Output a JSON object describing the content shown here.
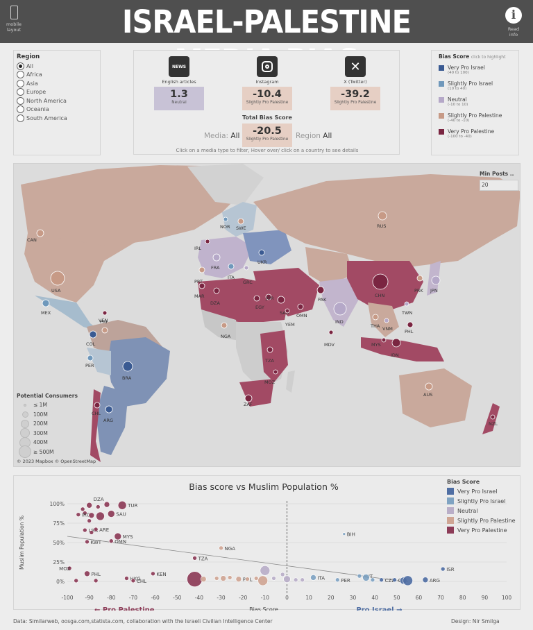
{
  "header": {
    "title": "ISRAEL-PALESTINE MEDIA BIAS",
    "mobile_label_1": "mobile",
    "mobile_label_2": "layout",
    "info_label_1": "Read",
    "info_label_2": "info"
  },
  "region": {
    "title": "Region",
    "selected": "All",
    "options": [
      "All",
      "Africa",
      "Asia",
      "Europe",
      "North America",
      "Oceania",
      "South America"
    ]
  },
  "media": {
    "items": [
      {
        "icon": "news-icon",
        "icon_text": "NEWS",
        "label": "English articles",
        "score": "1.3",
        "category": "Neutral",
        "color": "#c8c2d6"
      },
      {
        "icon": "instagram-icon",
        "label": "Instagram",
        "score": "-10.4",
        "category": "Slightly Pro Palestine",
        "color": "#e6cfc4"
      },
      {
        "icon": "x-twitter-icon",
        "label": "X (Twitter)",
        "score": "-39.2",
        "category": "Slightly Pro Palestine",
        "color": "#e6cfc4"
      }
    ],
    "total_label": "Total Bias Score",
    "total_score": "-20.5",
    "total_category": "Slightly Pro Palestine",
    "media_prefix": "Media:",
    "media_value": "All",
    "region_prefix": "Region",
    "region_value": "All",
    "hint": "Click on a media type  to filter,   Hover over/ click on a country to see details"
  },
  "legend": {
    "title": "Bias Score",
    "subtitle": "click to highlight",
    "items": [
      {
        "name": "Very Pro Israel",
        "range": "(40 to 100)",
        "color": "#3a5a92"
      },
      {
        "name": "Slightly Pro Israel",
        "range": "(10 to 40)",
        "color": "#6f98bb"
      },
      {
        "name": "Neutral",
        "range": "(-10 to 10)",
        "color": "#b5a8c8"
      },
      {
        "name": "Slightly Pro Palestine",
        "range": "(-40 to -10)",
        "color": "#c79a86"
      },
      {
        "name": "Very Pro Palestine",
        "range": "(-100 to -40)",
        "color": "#7a2541"
      }
    ]
  },
  "map": {
    "min_posts_label": "Min Posts ..",
    "min_posts_value": "20",
    "consumers_title": "Potential Consumers",
    "consumers": [
      "≤ 1M",
      "100M",
      "200M",
      "300M",
      "400M",
      "≥ 500M"
    ],
    "copyright": "© 2023 Mapbox © OpenStreetMap",
    "countries": [
      {
        "code": "CAN",
        "bias": "slightly-pro-palestine"
      },
      {
        "code": "USA",
        "bias": "slightly-pro-palestine"
      },
      {
        "code": "MEX",
        "bias": "slightly-pro-israel"
      },
      {
        "code": "PRI",
        "bias": "very-pro-palestine"
      },
      {
        "code": "COL",
        "bias": "very-pro-israel"
      },
      {
        "code": "VEN",
        "bias": "slightly-pro-palestine"
      },
      {
        "code": "PER",
        "bias": "slightly-pro-israel"
      },
      {
        "code": "BRA",
        "bias": "very-pro-israel"
      },
      {
        "code": "CHL",
        "bias": "very-pro-palestine"
      },
      {
        "code": "ARG",
        "bias": "very-pro-israel"
      },
      {
        "code": "NOR",
        "bias": "slightly-pro-israel"
      },
      {
        "code": "SWE",
        "bias": "slightly-pro-palestine"
      },
      {
        "code": "IRL",
        "bias": "very-pro-palestine"
      },
      {
        "code": "FRA",
        "bias": "neutral"
      },
      {
        "code": "PRT",
        "bias": "slightly-pro-palestine"
      },
      {
        "code": "ITA",
        "bias": "slightly-pro-israel"
      },
      {
        "code": "GRC",
        "bias": "neutral"
      },
      {
        "code": "UKR",
        "bias": "very-pro-israel"
      },
      {
        "code": "MAR",
        "bias": "very-pro-palestine"
      },
      {
        "code": "DZA",
        "bias": "very-pro-palestine"
      },
      {
        "code": "EGY",
        "bias": "very-pro-palestine"
      },
      {
        "code": "JOR",
        "bias": "very-pro-palestine"
      },
      {
        "code": "SAU",
        "bias": "very-pro-palestine"
      },
      {
        "code": "YEM",
        "bias": "very-pro-palestine"
      },
      {
        "code": "OMN",
        "bias": "very-pro-palestine"
      },
      {
        "code": "RUS",
        "bias": "slightly-pro-palestine"
      },
      {
        "code": "PAK",
        "bias": "very-pro-palestine"
      },
      {
        "code": "IND",
        "bias": "neutral"
      },
      {
        "code": "MDV",
        "bias": "very-pro-palestine"
      },
      {
        "code": "CHN",
        "bias": "very-pro-palestine"
      },
      {
        "code": "PRK",
        "bias": "slightly-pro-palestine"
      },
      {
        "code": "JPN",
        "bias": "neutral"
      },
      {
        "code": "TWN",
        "bias": "neutral"
      },
      {
        "code": "THA",
        "bias": "slightly-pro-palestine"
      },
      {
        "code": "VNM",
        "bias": "neutral"
      },
      {
        "code": "PHL",
        "bias": "very-pro-palestine"
      },
      {
        "code": "MYS",
        "bias": "very-pro-palestine"
      },
      {
        "code": "IDN",
        "bias": "very-pro-palestine"
      },
      {
        "code": "NGA",
        "bias": "slightly-pro-palestine"
      },
      {
        "code": "TZA",
        "bias": "very-pro-palestine"
      },
      {
        "code": "MOZ",
        "bias": "very-pro-palestine"
      },
      {
        "code": "ZAF",
        "bias": "very-pro-palestine"
      },
      {
        "code": "AUS",
        "bias": "slightly-pro-palestine"
      },
      {
        "code": "NZL",
        "bias": "very-pro-palestine"
      }
    ]
  },
  "chart_data": {
    "type": "scatter",
    "title": "Bias score vs Muslim Population %",
    "xlabel": "Bias Score",
    "ylabel": "Muslim Population %",
    "xlim": [
      -100,
      100
    ],
    "ylim": [
      0,
      100
    ],
    "xticks": [
      "-100",
      "-90",
      "-80",
      "-70",
      "-60",
      "-50",
      "-40",
      "-30",
      "-20",
      "-10",
      "0",
      "10",
      "20",
      "30",
      "40",
      "50",
      "60",
      "70",
      "80",
      "90",
      "100"
    ],
    "yticks": [
      "0%",
      "25%",
      "50%",
      "75%",
      "100%"
    ],
    "left_annotation": "← Pro Palestine",
    "right_annotation": "Pro Israel →",
    "trend": [
      [
        -100,
        58
      ],
      [
        53,
        0
      ]
    ],
    "legend_title": "Bias Score",
    "legend": [
      {
        "name": "Very Pro Israel",
        "color": "#4f6ea3"
      },
      {
        "name": "Slightly Pro Israel",
        "color": "#7fa3c2"
      },
      {
        "name": "Neutral",
        "color": "#b9aec8"
      },
      {
        "name": "Slightly Pro Palestine",
        "color": "#cfa594"
      },
      {
        "name": "Very Pro Palestine",
        "color": "#8c3b57"
      }
    ],
    "points": [
      {
        "label": "DZA",
        "x": -90,
        "y": 98,
        "r": 4,
        "cat": 4
      },
      {
        "label": "TUR",
        "x": -75,
        "y": 98,
        "r": 6,
        "cat": 4
      },
      {
        "label": "",
        "x": -82,
        "y": 99,
        "r": 4,
        "cat": 4
      },
      {
        "label": "",
        "x": -86,
        "y": 96,
        "r": 3,
        "cat": 4
      },
      {
        "label": "",
        "x": -93,
        "y": 93,
        "r": 3,
        "cat": 4
      },
      {
        "label": "",
        "x": -92,
        "y": 88,
        "r": 3,
        "cat": 4
      },
      {
        "label": "IRQ",
        "x": -95,
        "y": 86,
        "r": 3,
        "cat": 4
      },
      {
        "label": "",
        "x": -89,
        "y": 85,
        "r": 4,
        "cat": 4
      },
      {
        "label": "SAU",
        "x": -80,
        "y": 87,
        "r": 5,
        "cat": 4
      },
      {
        "label": "",
        "x": -85,
        "y": 84,
        "r": 6,
        "cat": 4
      },
      {
        "label": "",
        "x": -90,
        "y": 78,
        "r": 3,
        "cat": 4
      },
      {
        "label": "LBN",
        "x": -92,
        "y": 66,
        "r": 3,
        "cat": 4
      },
      {
        "label": "ARE",
        "x": -87,
        "y": 67,
        "r": 3,
        "cat": 4
      },
      {
        "label": "",
        "x": -89,
        "y": 63,
        "r": 3,
        "cat": 4
      },
      {
        "label": "KWT",
        "x": -91,
        "y": 51,
        "r": 3,
        "cat": 4
      },
      {
        "label": "OMN",
        "x": -80,
        "y": 52,
        "r": 3,
        "cat": 4
      },
      {
        "label": "MYS",
        "x": -77,
        "y": 58,
        "r": 5,
        "cat": 4
      },
      {
        "label": "MOZ",
        "x": -99,
        "y": 17,
        "r": 3,
        "cat": 4
      },
      {
        "label": "PHL",
        "x": -91,
        "y": 10,
        "r": 4,
        "cat": 4
      },
      {
        "label": "",
        "x": -96,
        "y": 1,
        "r": 3,
        "cat": 4
      },
      {
        "label": "",
        "x": -87,
        "y": 1,
        "r": 3,
        "cat": 4
      },
      {
        "label": "HKG",
        "x": -73,
        "y": 4,
        "r": 3,
        "cat": 4
      },
      {
        "label": "CHL",
        "x": -70,
        "y": 1,
        "r": 3,
        "cat": 4
      },
      {
        "label": "KEN",
        "x": -61,
        "y": 10,
        "r": 3,
        "cat": 4
      },
      {
        "label": "TZA",
        "x": -42,
        "y": 30,
        "r": 3,
        "cat": 4
      },
      {
        "label": "",
        "x": -42,
        "y": 3,
        "r": 11,
        "cat": 4
      },
      {
        "label": "NGA",
        "x": -30,
        "y": 43,
        "r": 3,
        "cat": 3
      },
      {
        "label": "",
        "x": -38,
        "y": 3,
        "r": 4,
        "cat": 3
      },
      {
        "label": "",
        "x": -32,
        "y": 4,
        "r": 3,
        "cat": 3
      },
      {
        "label": "",
        "x": -29,
        "y": 4,
        "r": 4,
        "cat": 3
      },
      {
        "label": "",
        "x": -26,
        "y": 5,
        "r": 3,
        "cat": 3
      },
      {
        "label": "POL",
        "x": -22,
        "y": 3,
        "r": 4,
        "cat": 3
      },
      {
        "label": "",
        "x": -18,
        "y": 3,
        "r": 3,
        "cat": 3
      },
      {
        "label": "",
        "x": -14,
        "y": 4,
        "r": 3,
        "cat": 3
      },
      {
        "label": "",
        "x": -11,
        "y": 1,
        "r": 7,
        "cat": 3
      },
      {
        "label": "",
        "x": -10,
        "y": 14,
        "r": 7,
        "cat": 2
      },
      {
        "label": "",
        "x": -6,
        "y": 4,
        "r": 3,
        "cat": 2
      },
      {
        "label": "",
        "x": -2,
        "y": 9,
        "r": 3,
        "cat": 2
      },
      {
        "label": "",
        "x": 0,
        "y": 3,
        "r": 5,
        "cat": 2
      },
      {
        "label": "",
        "x": 4,
        "y": 2,
        "r": 3,
        "cat": 2
      },
      {
        "label": "",
        "x": 7,
        "y": 2,
        "r": 3,
        "cat": 2
      },
      {
        "label": "ITA",
        "x": 12,
        "y": 5,
        "r": 4,
        "cat": 1
      },
      {
        "label": "BIH",
        "x": 26,
        "y": 61,
        "r": 2,
        "cat": 1
      },
      {
        "label": "PER",
        "x": 23,
        "y": 2,
        "r": 3,
        "cat": 1
      },
      {
        "label": "AUT",
        "x": 33,
        "y": 7,
        "r": 3,
        "cat": 1
      },
      {
        "label": "",
        "x": 36,
        "y": 5,
        "r": 5,
        "cat": 1
      },
      {
        "label": "",
        "x": 39,
        "y": 2,
        "r": 3,
        "cat": 1
      },
      {
        "label": "CZE",
        "x": 43,
        "y": 2,
        "r": 3,
        "cat": 0
      },
      {
        "label": "COL",
        "x": 49,
        "y": 2,
        "r": 3,
        "cat": 0
      },
      {
        "label": "",
        "x": 53,
        "y": 1,
        "r": 5,
        "cat": 0
      },
      {
        "label": "",
        "x": 55,
        "y": 1,
        "r": 7,
        "cat": 0
      },
      {
        "label": "ARG",
        "x": 63,
        "y": 2,
        "r": 4,
        "cat": 0
      },
      {
        "label": "ISR",
        "x": 71,
        "y": 16,
        "r": 3,
        "cat": 0
      }
    ]
  },
  "footer": {
    "sources": "Data: Similarweb, oosga.com,statista.com, collaboration with the Israeli Civilian Intelligence Center",
    "design": "Design: Nir Smilga"
  }
}
